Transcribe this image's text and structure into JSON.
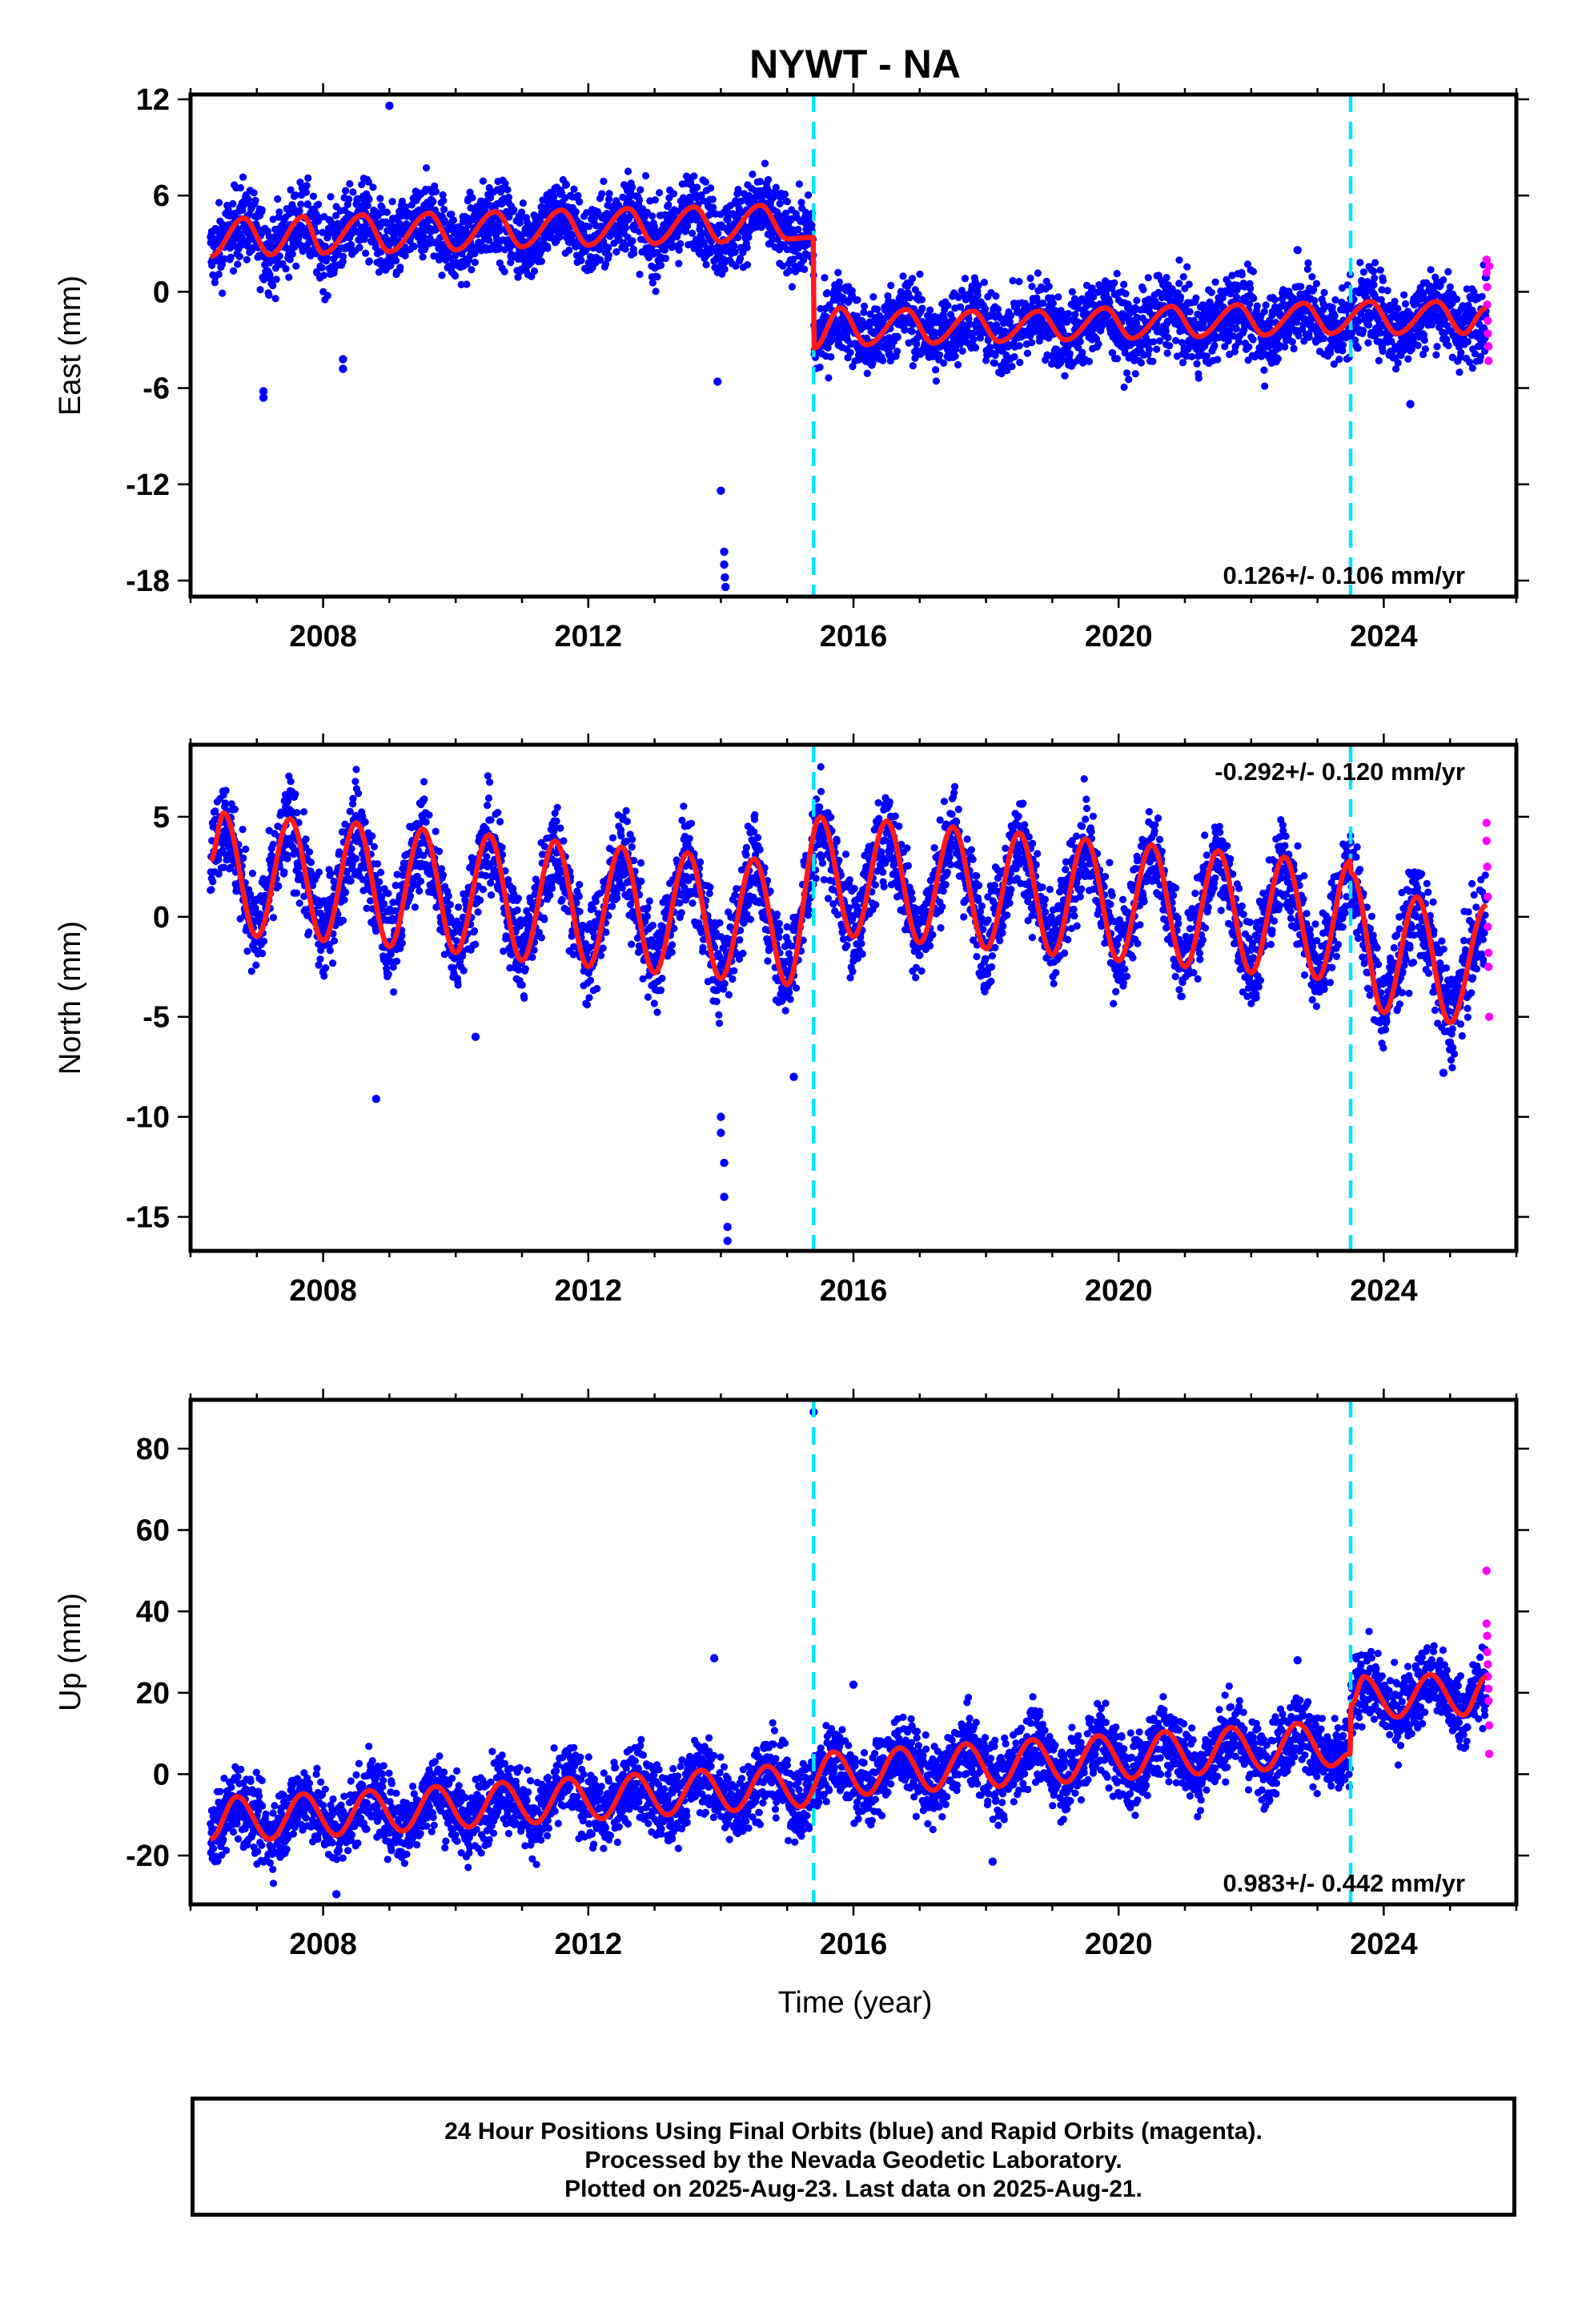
{
  "title": "NYWT - NA",
  "colors": {
    "final": "#0000ff",
    "rapid": "#ff00ff",
    "model": "#ff1a1a",
    "breaks": "#00e5ff",
    "frame": "#000000"
  },
  "xaxis": {
    "range": [
      2006.0,
      2026.0
    ],
    "ticks": [
      2008,
      2012,
      2016,
      2020,
      2024
    ],
    "tick_labels": [
      "2008",
      "2012",
      "2016",
      "2020",
      "2024"
    ],
    "label": "Time (year)"
  },
  "breaks": [
    2015.4,
    2023.5
  ],
  "caption": {
    "line1": "24 Hour Positions Using Final Orbits (blue) and Rapid Orbits (magenta).",
    "line2": "Processed by the Nevada Geodetic Laboratory.",
    "line3": "Plotted on 2025-Aug-23. Last data on 2025-Aug-21."
  },
  "chart_data": [
    {
      "type": "scatter",
      "ylabel": "East (mm)",
      "ylim": [
        -19,
        12.3
      ],
      "yticks": [
        12,
        6,
        0,
        -6,
        -12,
        -18
      ],
      "ytick_labels": [
        "12",
        "6",
        "0",
        "-6",
        "-12",
        "-18"
      ],
      "rate": "0.126+/- 0.106 mm/yr",
      "rate_position": "bottom-right",
      "model": {
        "x": [
          2006.3,
          2006.8,
          2007.2,
          2007.7,
          2008.0,
          2008.6,
          2009.0,
          2009.6,
          2010.0,
          2010.6,
          2011.0,
          2011.6,
          2012.0,
          2012.6,
          2013.0,
          2013.6,
          2014.0,
          2014.6,
          2015.0,
          2015.39,
          2015.41,
          2015.8,
          2016.2,
          2016.8,
          2017.2,
          2017.8,
          2018.2,
          2018.8,
          2019.2,
          2019.8,
          2020.2,
          2020.8,
          2021.2,
          2021.8,
          2022.2,
          2022.8,
          2023.2,
          2023.8,
          2024.2,
          2024.8,
          2025.2,
          2025.55
        ],
        "y": [
          2.2,
          4.6,
          2.3,
          4.7,
          2.4,
          4.8,
          2.5,
          4.9,
          2.6,
          5.0,
          2.8,
          5.1,
          2.9,
          5.2,
          3.0,
          5.3,
          3.1,
          5.4,
          3.3,
          3.4,
          -3.5,
          -1.0,
          -3.3,
          -1.1,
          -3.2,
          -1.2,
          -3.1,
          -1.2,
          -3.0,
          -1.0,
          -2.9,
          -0.9,
          -2.8,
          -0.8,
          -2.7,
          -0.7,
          -2.6,
          -0.6,
          -2.6,
          -0.6,
          -2.6,
          -1.0
        ]
      },
      "outliers": {
        "x": [
          2008.3,
          2008.3,
          2009.0,
          2007.1,
          2007.1,
          2014.0,
          2014.05,
          2014.05,
          2014.06,
          2014.07,
          2013.95,
          2024.4,
          2022.7
        ],
        "y": [
          -4.2,
          -4.8,
          11.6,
          -6.2,
          -6.6,
          -12.4,
          -16.2,
          -17.0,
          -17.8,
          -18.4,
          -5.6,
          -7.0,
          2.6
        ]
      },
      "rapid": {
        "x": [
          2025.55,
          2025.55,
          2025.56,
          2025.56,
          2025.57,
          2025.57,
          2025.58,
          2025.58,
          2025.59
        ],
        "y": [
          2.0,
          1.2,
          0.3,
          -0.8,
          -1.8,
          -2.6,
          -3.4,
          -4.3,
          1.6
        ]
      }
    },
    {
      "type": "scatter",
      "ylabel": "North (mm)",
      "ylim": [
        -16.7,
        8.6
      ],
      "yticks": [
        5,
        0,
        -5,
        -10,
        -15
      ],
      "ytick_labels": [
        "5",
        "0",
        "-5",
        "-10",
        "-15"
      ],
      "rate": "-0.292+/- 0.120 mm/yr",
      "rate_position": "top-right",
      "model": {
        "x": [
          2006.3,
          2006.5,
          2007.0,
          2007.5,
          2008.0,
          2008.5,
          2009.0,
          2009.5,
          2010.0,
          2010.5,
          2011.0,
          2011.5,
          2012.0,
          2012.5,
          2013.0,
          2013.5,
          2014.0,
          2014.5,
          2015.0,
          2015.5,
          2016.0,
          2016.5,
          2017.0,
          2017.5,
          2018.0,
          2018.5,
          2019.0,
          2019.5,
          2020.0,
          2020.5,
          2021.0,
          2021.5,
          2022.0,
          2022.5,
          2023.0,
          2023.49,
          2023.51,
          2024.0,
          2024.5,
          2025.0,
          2025.55
        ],
        "y": [
          2.8,
          5.2,
          -1.0,
          4.9,
          -1.2,
          4.7,
          -1.5,
          4.4,
          -1.8,
          4.1,
          -2.2,
          3.8,
          -2.5,
          3.5,
          -2.8,
          3.2,
          -3.1,
          2.9,
          -3.4,
          5.0,
          -1.0,
          4.8,
          -1.3,
          4.5,
          -1.6,
          4.2,
          -1.9,
          3.9,
          -2.2,
          3.6,
          -2.5,
          3.3,
          -2.8,
          3.0,
          -3.1,
          2.8,
          2.2,
          -4.8,
          1.0,
          -5.3,
          0.6
        ]
      },
      "outliers": {
        "x": [
          2008.8,
          2014.0,
          2014.0,
          2014.05,
          2014.05,
          2014.1,
          2014.1,
          2015.1,
          2010.3,
          2024.9
        ],
        "y": [
          -9.1,
          -10.0,
          -10.8,
          -12.3,
          -14.0,
          -15.5,
          -16.2,
          -8.0,
          -6.0,
          -7.8
        ]
      },
      "rapid": {
        "x": [
          2025.55,
          2025.55,
          2025.56,
          2025.57,
          2025.57,
          2025.58,
          2025.58,
          2025.59
        ],
        "y": [
          4.7,
          3.8,
          2.5,
          1.0,
          -0.5,
          -1.8,
          -2.5,
          -5.0
        ]
      }
    },
    {
      "type": "scatter",
      "ylabel": "Up (mm)",
      "ylim": [
        -32,
        92
      ],
      "yticks": [
        80,
        60,
        40,
        20,
        0,
        -20
      ],
      "ytick_labels": [
        "80",
        "60",
        "40",
        "20",
        "0",
        "-20"
      ],
      "rate": "0.983+/- 0.442 mm/yr",
      "rate_position": "bottom-right",
      "model": {
        "x": [
          2006.3,
          2006.7,
          2007.2,
          2007.7,
          2008.2,
          2008.7,
          2009.2,
          2009.7,
          2010.2,
          2010.7,
          2011.2,
          2011.7,
          2012.2,
          2012.7,
          2013.2,
          2013.7,
          2014.2,
          2014.7,
          2015.2,
          2015.7,
          2016.2,
          2016.7,
          2017.2,
          2017.7,
          2018.2,
          2018.7,
          2019.2,
          2019.7,
          2020.2,
          2020.7,
          2021.2,
          2021.7,
          2022.2,
          2022.7,
          2023.2,
          2023.49,
          2023.51,
          2023.7,
          2024.2,
          2024.7,
          2025.2,
          2025.55
        ],
        "y": [
          -16.0,
          -5.5,
          -16.0,
          -4.8,
          -15.0,
          -4.0,
          -14.0,
          -3.0,
          -13.0,
          -2.0,
          -12.0,
          -1.0,
          -11.0,
          0.0,
          -10.0,
          1.0,
          -9.0,
          2.0,
          -8.0,
          5.5,
          -5.0,
          6.5,
          -4.0,
          7.5,
          -3.0,
          8.5,
          -2.0,
          9.5,
          -1.0,
          10.5,
          0.0,
          11.5,
          1.0,
          12.5,
          2.0,
          5.0,
          17.0,
          24.0,
          14.0,
          24.5,
          14.5,
          24.0
        ]
      },
      "outliers": {
        "x": [
          2015.4,
          2013.9,
          2008.2,
          2018.1,
          2022.7,
          2016.0
        ],
        "y": [
          89.0,
          28.5,
          -29.5,
          -21.5,
          28.0,
          22.0
        ]
      },
      "rapid": {
        "x": [
          2025.55,
          2025.55,
          2025.56,
          2025.56,
          2025.57,
          2025.57,
          2025.58,
          2025.58,
          2025.59,
          2025.59
        ],
        "y": [
          50.0,
          37.0,
          34.0,
          30.0,
          27.0,
          24.0,
          21.0,
          18.0,
          12.0,
          5.0
        ]
      }
    }
  ]
}
